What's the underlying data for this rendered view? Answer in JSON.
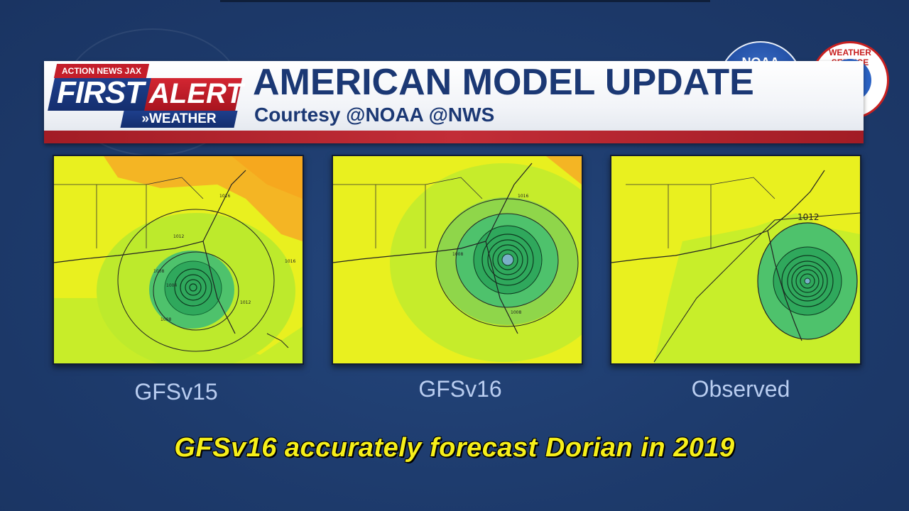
{
  "header": {
    "station_tag": "ACTION NEWS JAX",
    "brand_first": "FIRST",
    "brand_alert": "ALERT",
    "brand_weather": "»WEATHER",
    "title": "AMERICAN MODEL UPDATE",
    "subtitle": "Courtesy @NOAA @NWS"
  },
  "logos": {
    "noaa": "NOAA",
    "nws": "WEATHER SERVICE"
  },
  "maps": [
    {
      "caption": "GFSv15",
      "contour_labels": [
        "1016",
        "1012",
        "1008",
        "1004",
        "1016",
        "1012",
        "1008"
      ]
    },
    {
      "caption": "GFSv16",
      "contour_labels": [
        "1016",
        "1008",
        "1008"
      ]
    },
    {
      "caption": "Observed",
      "contour_labels": [
        "1012"
      ]
    }
  ],
  "bottom_caption": "GFSv16 accurately forecast Dorian in 2019",
  "colors": {
    "background": "#1f3c6e",
    "brand_blue": "#1b3874",
    "brand_red": "#c41e2a",
    "caption_yellow": "#f6ef1a",
    "map_caption": "#b9cdf0"
  }
}
